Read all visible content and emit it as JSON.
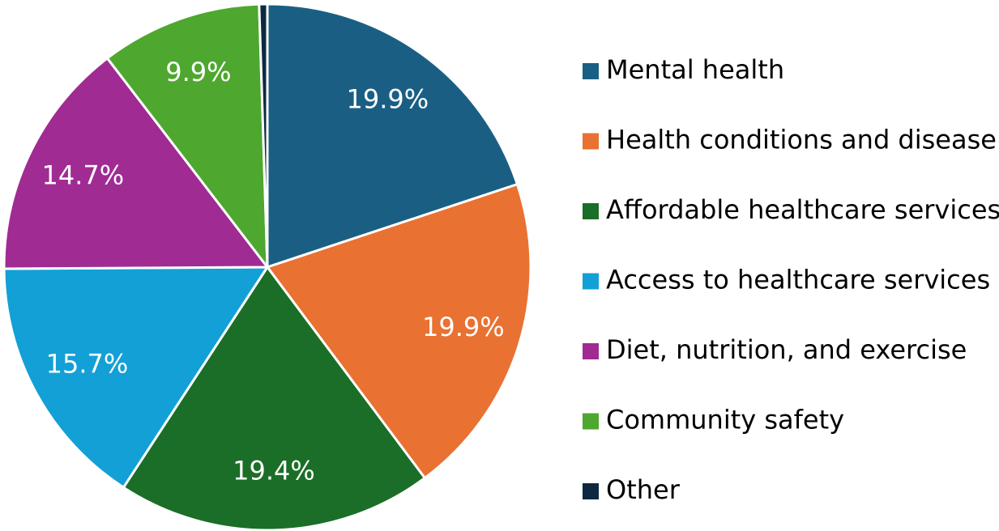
{
  "chart_data": {
    "type": "pie",
    "categories": [
      "Mental health",
      "Health conditions and disease",
      "Affordable healthcare services",
      "Access to healthcare services",
      "Diet, nutrition, and exercise",
      "Community safety",
      "Other"
    ],
    "values": [
      19.9,
      19.9,
      19.4,
      15.7,
      14.7,
      9.9,
      0.5
    ],
    "value_labels": [
      "19.9%",
      "19.9%",
      "19.4%",
      "15.7%",
      "14.7%",
      "9.9%",
      null
    ],
    "colors": [
      "#1a5f83",
      "#e97132",
      "#1b6e27",
      "#12a0d7",
      "#a02b93",
      "#4ea72e",
      "#0e2841"
    ],
    "legend": "right"
  }
}
